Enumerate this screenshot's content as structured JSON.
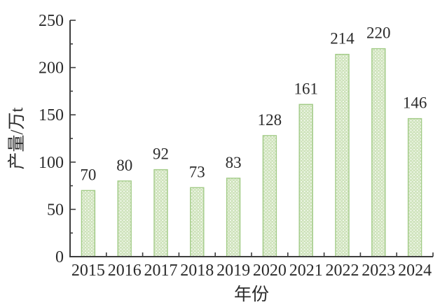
{
  "figure": {
    "kind": "static-journal-style-bar-chart"
  },
  "chart_data": {
    "type": "bar",
    "categories": [
      "2015",
      "2016",
      "2017",
      "2018",
      "2019",
      "2020",
      "2021",
      "2022",
      "2023",
      "2024"
    ],
    "values": [
      70,
      80,
      92,
      73,
      83,
      128,
      161,
      214,
      220,
      146
    ],
    "title": "",
    "xlabel": "年份",
    "ylabel": "产量/万t",
    "ylim": [
      0,
      250
    ],
    "ytick_major": 50,
    "ytick_minor": 25,
    "yticks": [
      0,
      50,
      100,
      150,
      200,
      250
    ],
    "grid": false,
    "legend": null,
    "value_labels_shown": true,
    "style": {
      "bar_fill_base": "#e7f1db",
      "bar_pattern_dot_fill": "#f8fcf4",
      "bar_pattern_dot_stroke": "#bcd8a4",
      "bar_border": "#a2cb87",
      "axis_color": "#3d3d3d",
      "text_color": "#2b2b2b",
      "background": "#ffffff"
    }
  }
}
